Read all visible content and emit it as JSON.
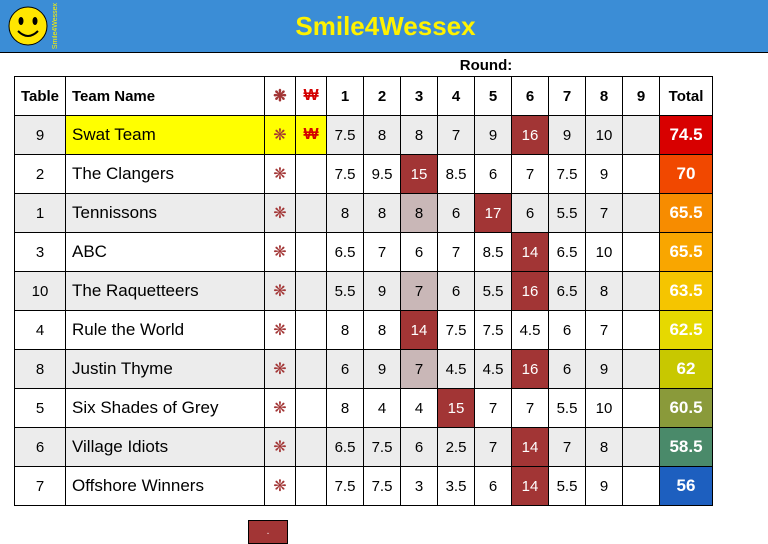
{
  "header": {
    "side_label": "Smile4Wessex",
    "title": "Smile4Wessex"
  },
  "round_label": "Round:",
  "columns": {
    "table": "Table",
    "team": "Team Name",
    "icon1_glyph": "❋",
    "icon2_glyph": "₩",
    "rounds": [
      "1",
      "2",
      "3",
      "4",
      "5",
      "6",
      "7",
      "8",
      "9"
    ],
    "total": "Total"
  },
  "rows": [
    {
      "table": "9",
      "team": "Swat Team",
      "ic1": true,
      "ic2": true,
      "scores": [
        "7.5",
        "8",
        "8",
        "7",
        "9",
        "16",
        "9",
        "10",
        ""
      ],
      "joker": [
        5
      ],
      "total": "74.5",
      "total_color": "#d80000",
      "highlight": true
    },
    {
      "table": "2",
      "team": "The Clangers",
      "ic1": true,
      "ic2": false,
      "scores": [
        "7.5",
        "9.5",
        "15",
        "8.5",
        "6",
        "7",
        "7.5",
        "9",
        ""
      ],
      "joker": [
        2
      ],
      "total": "70",
      "total_color": "#f14800",
      "highlight": false
    },
    {
      "table": "1",
      "team": "Tennissons",
      "ic1": true,
      "ic2": false,
      "scores": [
        "8",
        "8",
        "8",
        "6",
        "17",
        "6",
        "5.5",
        "7",
        ""
      ],
      "joker": [
        4
      ],
      "total": "65.5",
      "total_color": "#f78c00",
      "highlight": false
    },
    {
      "table": "3",
      "team": "ABC",
      "ic1": true,
      "ic2": false,
      "scores": [
        "6.5",
        "7",
        "6",
        "7",
        "8.5",
        "14",
        "6.5",
        "10",
        ""
      ],
      "joker": [
        5
      ],
      "total": "65.5",
      "total_color": "#f9a600",
      "highlight": false
    },
    {
      "table": "10",
      "team": "The Raquetteers",
      "ic1": true,
      "ic2": false,
      "scores": [
        "5.5",
        "9",
        "7",
        "6",
        "5.5",
        "16",
        "6.5",
        "8",
        ""
      ],
      "joker": [
        5
      ],
      "total": "63.5",
      "total_color": "#f5c500",
      "highlight": false
    },
    {
      "table": "4",
      "team": "Rule the World",
      "ic1": true,
      "ic2": false,
      "scores": [
        "8",
        "8",
        "14",
        "7.5",
        "7.5",
        "4.5",
        "6",
        "7",
        ""
      ],
      "joker": [
        2
      ],
      "total": "62.5",
      "total_color": "#e6d900",
      "highlight": false
    },
    {
      "table": "8",
      "team": "Justin Thyme",
      "ic1": true,
      "ic2": false,
      "scores": [
        "6",
        "9",
        "7",
        "4.5",
        "4.5",
        "16",
        "6",
        "9",
        ""
      ],
      "joker": [
        5
      ],
      "total": "62",
      "total_color": "#c8c800",
      "highlight": false
    },
    {
      "table": "5",
      "team": "Six Shades of Grey",
      "ic1": true,
      "ic2": false,
      "scores": [
        "8",
        "4",
        "4",
        "15",
        "7",
        "7",
        "5.5",
        "10",
        ""
      ],
      "joker": [
        3
      ],
      "total": "60.5",
      "total_color": "#8a9a3a",
      "highlight": false
    },
    {
      "table": "6",
      "team": "Village Idiots",
      "ic1": true,
      "ic2": false,
      "scores": [
        "6.5",
        "7.5",
        "6",
        "2.5",
        "7",
        "14",
        "7",
        "8",
        ""
      ],
      "joker": [
        5
      ],
      "total": "58.5",
      "total_color": "#4a8a6a",
      "highlight": false
    },
    {
      "table": "7",
      "team": "Offshore Winners",
      "ic1": true,
      "ic2": false,
      "scores": [
        "7.5",
        "7.5",
        "3",
        "3.5",
        "6",
        "14",
        "5.5",
        "9",
        ""
      ],
      "joker": [
        5
      ],
      "total": "56",
      "total_color": "#1d5fbf",
      "highlight": false
    }
  ],
  "legend": {
    "text": "."
  },
  "shade_cells": {
    "0": [],
    "1": [],
    "2": [
      2
    ],
    "3": [],
    "4": [
      2
    ],
    "5": [],
    "6": [
      2
    ],
    "7": [],
    "8": [],
    "9": []
  }
}
